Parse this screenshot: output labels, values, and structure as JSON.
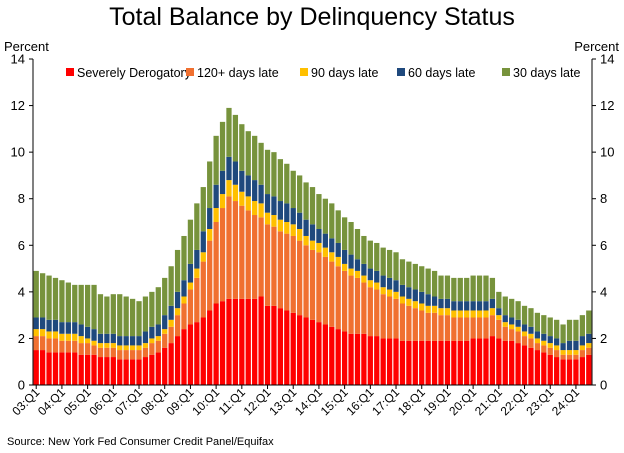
{
  "chart_data": {
    "type": "bar",
    "stacked": true,
    "title": "Total Balance by Delinquency Status",
    "ylabel_left": "Percent",
    "ylabel_right": "Percent",
    "xlabel": "",
    "ylim": [
      0,
      14
    ],
    "yticks": [
      "0",
      "2",
      "4",
      "6",
      "8",
      "10",
      "12",
      "14"
    ],
    "grid": false,
    "legend_position": "top",
    "source": "Source: New York Fed Consumer Credit Panel/Equifax",
    "x_tick_labels": [
      "03:Q1",
      "04:Q1",
      "05:Q1",
      "06:Q1",
      "07:Q1",
      "08:Q1",
      "09:Q1",
      "10:Q1",
      "11:Q1",
      "12:Q1",
      "13:Q1",
      "14:Q1",
      "15:Q1",
      "16:Q1",
      "17:Q1",
      "18:Q1",
      "19:Q1",
      "20:Q1",
      "21:Q1",
      "22:Q1",
      "23:Q1",
      "24:Q1"
    ],
    "start_quarter": "03:Q1",
    "series": [
      {
        "name": "Severely Derogatory",
        "color": "#ff0000",
        "values": [
          1.5,
          1.5,
          1.4,
          1.4,
          1.4,
          1.4,
          1.4,
          1.3,
          1.3,
          1.3,
          1.2,
          1.2,
          1.2,
          1.1,
          1.1,
          1.1,
          1.1,
          1.2,
          1.3,
          1.4,
          1.6,
          1.8,
          2.1,
          2.4,
          2.6,
          2.7,
          2.9,
          3.2,
          3.5,
          3.6,
          3.7,
          3.7,
          3.7,
          3.7,
          3.7,
          3.8,
          3.4,
          3.4,
          3.3,
          3.2,
          3.1,
          3.0,
          2.9,
          2.8,
          2.7,
          2.6,
          2.5,
          2.4,
          2.3,
          2.2,
          2.2,
          2.2,
          2.1,
          2.1,
          2.0,
          2.0,
          2.0,
          1.9,
          1.9,
          1.9,
          1.9,
          1.9,
          1.9,
          1.9,
          1.9,
          1.9,
          1.9,
          1.9,
          2.0,
          2.0,
          2.0,
          2.1,
          2.0,
          1.9,
          1.9,
          1.8,
          1.7,
          1.6,
          1.5,
          1.4,
          1.3,
          1.2,
          1.1,
          1.1,
          1.1,
          1.2,
          1.3
        ]
      },
      {
        "name": "120+ days late",
        "color": "#f07030",
        "values": [
          0.6,
          0.6,
          0.6,
          0.6,
          0.5,
          0.5,
          0.5,
          0.5,
          0.5,
          0.4,
          0.4,
          0.4,
          0.4,
          0.4,
          0.4,
          0.4,
          0.4,
          0.4,
          0.5,
          0.5,
          0.6,
          0.7,
          0.9,
          1.1,
          1.5,
          1.9,
          2.4,
          3.0,
          3.5,
          4.0,
          4.4,
          4.2,
          4.0,
          3.8,
          3.6,
          3.4,
          3.5,
          3.4,
          3.3,
          3.3,
          3.3,
          3.2,
          3.1,
          3.0,
          3.0,
          2.9,
          2.8,
          2.7,
          2.6,
          2.5,
          2.4,
          2.2,
          2.1,
          2.0,
          1.9,
          1.8,
          1.7,
          1.6,
          1.5,
          1.4,
          1.3,
          1.2,
          1.2,
          1.1,
          1.1,
          1.0,
          1.0,
          1.0,
          0.9,
          0.9,
          0.9,
          0.9,
          0.8,
          0.6,
          0.5,
          0.5,
          0.4,
          0.4,
          0.3,
          0.3,
          0.3,
          0.3,
          0.2,
          0.2,
          0.2,
          0.3,
          0.3
        ]
      },
      {
        "name": "90 days late",
        "color": "#ffc000",
        "values": [
          0.3,
          0.3,
          0.3,
          0.3,
          0.3,
          0.3,
          0.3,
          0.3,
          0.2,
          0.2,
          0.2,
          0.2,
          0.2,
          0.2,
          0.2,
          0.2,
          0.2,
          0.2,
          0.2,
          0.2,
          0.2,
          0.3,
          0.3,
          0.3,
          0.3,
          0.4,
          0.4,
          0.5,
          0.6,
          0.6,
          0.7,
          0.7,
          0.6,
          0.6,
          0.6,
          0.6,
          0.5,
          0.5,
          0.5,
          0.5,
          0.5,
          0.5,
          0.4,
          0.4,
          0.4,
          0.4,
          0.4,
          0.4,
          0.3,
          0.3,
          0.3,
          0.3,
          0.3,
          0.3,
          0.3,
          0.3,
          0.3,
          0.3,
          0.3,
          0.3,
          0.3,
          0.3,
          0.3,
          0.3,
          0.3,
          0.3,
          0.3,
          0.3,
          0.3,
          0.3,
          0.3,
          0.3,
          0.2,
          0.2,
          0.2,
          0.2,
          0.2,
          0.2,
          0.2,
          0.2,
          0.2,
          0.2,
          0.2,
          0.2,
          0.2,
          0.2,
          0.2
        ]
      },
      {
        "name": "60 days late",
        "color": "#1f497d",
        "values": [
          0.5,
          0.5,
          0.5,
          0.5,
          0.5,
          0.5,
          0.5,
          0.5,
          0.5,
          0.5,
          0.4,
          0.4,
          0.4,
          0.4,
          0.4,
          0.4,
          0.4,
          0.5,
          0.5,
          0.5,
          0.6,
          0.6,
          0.7,
          0.7,
          0.8,
          0.8,
          0.9,
          0.9,
          1.0,
          1.0,
          1.0,
          1.0,
          0.9,
          0.9,
          0.9,
          0.8,
          0.8,
          0.8,
          0.8,
          0.8,
          0.7,
          0.7,
          0.7,
          0.7,
          0.6,
          0.6,
          0.6,
          0.6,
          0.6,
          0.6,
          0.5,
          0.5,
          0.5,
          0.5,
          0.5,
          0.5,
          0.5,
          0.5,
          0.5,
          0.5,
          0.5,
          0.5,
          0.4,
          0.4,
          0.4,
          0.4,
          0.4,
          0.4,
          0.4,
          0.4,
          0.4,
          0.4,
          0.3,
          0.3,
          0.3,
          0.3,
          0.3,
          0.3,
          0.3,
          0.3,
          0.3,
          0.3,
          0.3,
          0.4,
          0.4,
          0.4,
          0.4
        ]
      },
      {
        "name": "30 days late",
        "color": "#77933c",
        "values": [
          2.0,
          1.9,
          1.9,
          1.8,
          1.8,
          1.7,
          1.6,
          1.7,
          1.8,
          1.9,
          1.7,
          1.6,
          1.7,
          1.8,
          1.7,
          1.6,
          1.5,
          1.5,
          1.5,
          1.6,
          1.6,
          1.7,
          1.8,
          1.9,
          1.9,
          2.0,
          1.9,
          2.0,
          2.1,
          2.1,
          2.1,
          2.0,
          2.0,
          1.9,
          1.9,
          1.8,
          1.9,
          1.9,
          1.8,
          1.7,
          1.6,
          1.6,
          1.6,
          1.6,
          1.5,
          1.5,
          1.5,
          1.4,
          1.4,
          1.4,
          1.3,
          1.2,
          1.2,
          1.2,
          1.2,
          1.2,
          1.2,
          1.1,
          1.1,
          1.1,
          1.1,
          1.1,
          1.1,
          1.0,
          1.0,
          1.0,
          1.0,
          1.0,
          1.1,
          1.1,
          1.1,
          0.9,
          0.7,
          0.8,
          0.8,
          0.8,
          0.8,
          0.8,
          0.8,
          0.8,
          0.8,
          0.8,
          0.8,
          0.9,
          0.9,
          0.9,
          1.0
        ]
      }
    ]
  }
}
